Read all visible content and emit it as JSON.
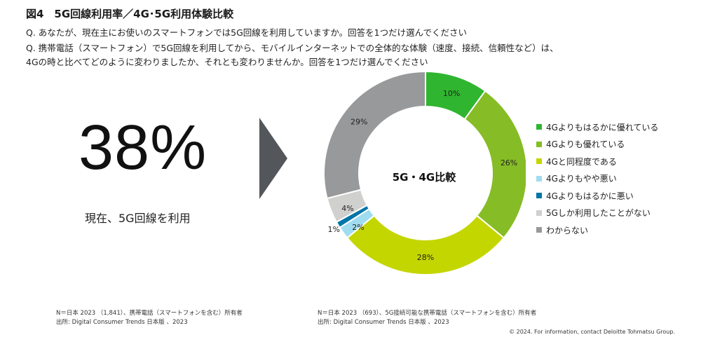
{
  "header": {
    "title": "図4　5G回線利用率／4G･5G利用体験比較",
    "question1": "Q. あなたが、現在主にお使いのスマートフォンでは5G回線を利用していますか。回答を1つだけ選んでください",
    "question2": "Q. 携帯電話（スマートフォン）で5G回線を利用してから、モバイルインターネットでの全体的な体験（速度、接続、信頼性など）は、",
    "question2_cont": "4Gの時と比べてどのように変わりましたか、それとも変わりませんか。回答を1つだけ選んでください"
  },
  "highlight": {
    "value": "38%",
    "label": "現在、5G回線を利用"
  },
  "chart_data": {
    "type": "pie",
    "subtype": "donut",
    "center_label": "5G・4G比較",
    "slices": [
      {
        "label": "4Gよりもはるかに優れている",
        "value": 10,
        "value_label": "10%",
        "color": "#2fb52f"
      },
      {
        "label": "4Gよりも優れている",
        "value": 26,
        "value_label": "26%",
        "color": "#86bc25"
      },
      {
        "label": "4Gと同程度である",
        "value": 28,
        "value_label": "28%",
        "color": "#c4d600"
      },
      {
        "label": "4Gよりもやや悪い",
        "value": 2,
        "value_label": "2%",
        "color": "#a0dcf0"
      },
      {
        "label": "4Gよりもはるかに悪い",
        "value": 1,
        "value_label": "1%",
        "color": "#0076a8"
      },
      {
        "label": "5Gしか利用したことがない",
        "value": 4,
        "value_label": "4%",
        "color": "#d0d0ce"
      },
      {
        "label": "わからない",
        "value": 29,
        "value_label": "29%",
        "color": "#97999b"
      }
    ],
    "legend_position": "right"
  },
  "notes": {
    "left_line1": "N＝日本 2023 （1,841）、携帯電話（スマートフォンを含む）所有者",
    "left_line2": "出所: Digital Consumer Trends 日本版 、2023",
    "right_line1": "N＝日本 2023 （693）、5G接続可能な携帯電話（スマートフォンを含む）所有者",
    "right_line2": "出所: Digital Consumer Trends 日本版 、2023",
    "copyright": "© 2024. For information, contact Deloitte Tohmatsu Group."
  },
  "colors": {
    "arrow": "#53565a"
  }
}
